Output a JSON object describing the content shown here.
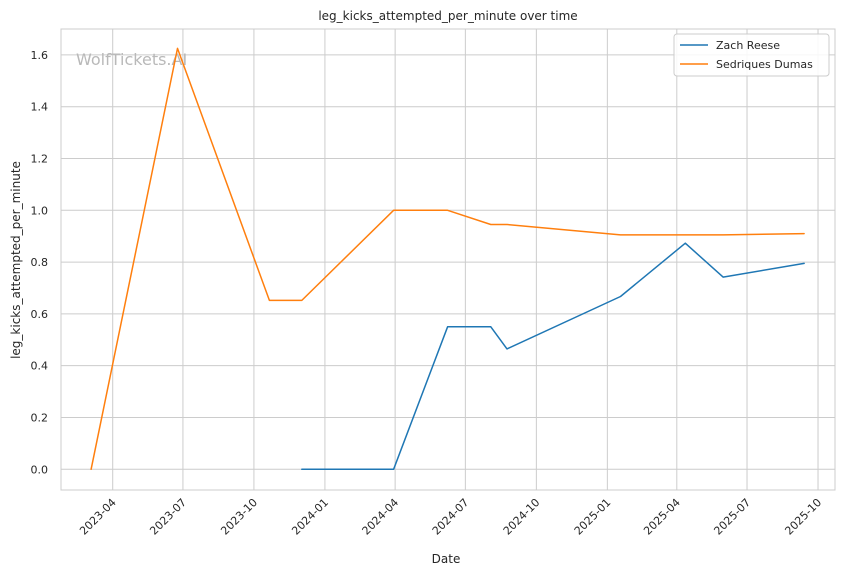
{
  "chart_data": {
    "type": "line",
    "title": "leg_kicks_attempted_per_minute over time",
    "xlabel": "Date",
    "ylabel": "leg_kicks_attempted_per_minute",
    "watermark": "WolfTickets.AI",
    "x_range": [
      "2023-01-24",
      "2025-10-23"
    ],
    "ylim": [
      -0.08,
      1.7
    ],
    "x_ticks": [
      "2023-04",
      "2023-07",
      "2023-10",
      "2024-01",
      "2024-04",
      "2024-07",
      "2024-10",
      "2025-01",
      "2025-04",
      "2025-07",
      "2025-10"
    ],
    "y_ticks": [
      "0.0",
      "0.2",
      "0.4",
      "0.6",
      "0.8",
      "1.0",
      "1.2",
      "1.4",
      "1.6"
    ],
    "grid": true,
    "legend_position": "top-right",
    "series": [
      {
        "name": "Zach Reese",
        "color": "#1f77b4",
        "points": [
          {
            "x": "2023-12-02",
            "y": 0.0
          },
          {
            "x": "2024-03-30",
            "y": 0.0
          },
          {
            "x": "2024-06-08",
            "y": 0.55
          },
          {
            "x": "2024-08-03",
            "y": 0.55
          },
          {
            "x": "2024-08-24",
            "y": 0.465
          },
          {
            "x": "2025-01-18",
            "y": 0.667
          },
          {
            "x": "2025-04-12",
            "y": 0.873
          },
          {
            "x": "2025-05-31",
            "y": 0.742
          },
          {
            "x": "2025-09-13",
            "y": 0.795
          }
        ]
      },
      {
        "name": "Sedriques Dumas",
        "color": "#ff7f0e",
        "points": [
          {
            "x": "2023-03-04",
            "y": 0.0
          },
          {
            "x": "2023-06-24",
            "y": 1.625
          },
          {
            "x": "2023-10-21",
            "y": 0.652
          },
          {
            "x": "2023-12-02",
            "y": 0.652
          },
          {
            "x": "2024-03-30",
            "y": 1.0
          },
          {
            "x": "2024-06-08",
            "y": 1.0
          },
          {
            "x": "2024-08-03",
            "y": 0.945
          },
          {
            "x": "2024-08-24",
            "y": 0.945
          },
          {
            "x": "2025-01-18",
            "y": 0.905
          },
          {
            "x": "2025-04-12",
            "y": 0.905
          },
          {
            "x": "2025-05-31",
            "y": 0.905
          },
          {
            "x": "2025-09-13",
            "y": 0.91
          }
        ]
      }
    ]
  }
}
